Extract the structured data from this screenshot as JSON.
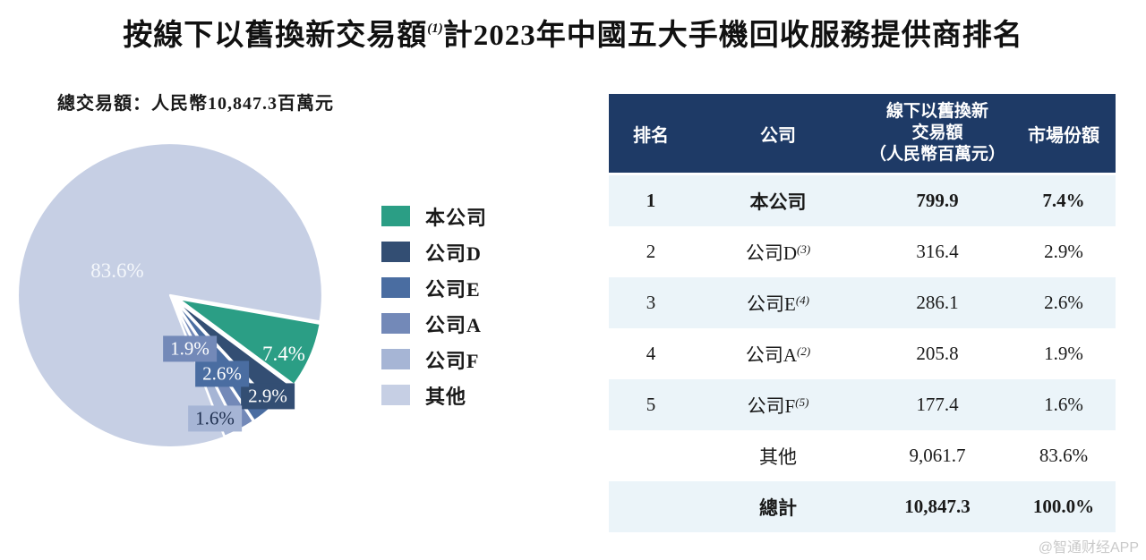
{
  "title": {
    "part1": "按線下以舊換新交易額",
    "superscript": "(1)",
    "part2": "計2023年中國五大手機回收服務提供商排名"
  },
  "subtitle": "總交易額：人民幣10,847.3百萬元",
  "chart_data": {
    "type": "pie",
    "title": "按線下以舊換新交易額(1)計2023年中國五大手機回收服務提供商排名",
    "total_label": "總交易額：人民幣10,847.3百萬元",
    "total_value_rmb_millions": 10847.3,
    "start_angle_deg": 10,
    "legend_position": "right",
    "slices": [
      {
        "name": "本公司",
        "value": 799.9,
        "share_pct": 7.4,
        "label": "7.4%",
        "color": "#2B9E85",
        "label_text_color": "#ffffff"
      },
      {
        "name": "公司D",
        "value": 316.4,
        "share_pct": 2.9,
        "label": "2.9%",
        "color": "#334E73",
        "label_text_color": "#ffffff"
      },
      {
        "name": "公司E",
        "value": 286.1,
        "share_pct": 2.6,
        "label": "2.6%",
        "color": "#4A6DA1",
        "label_text_color": "#ffffff"
      },
      {
        "name": "公司A",
        "value": 205.8,
        "share_pct": 1.9,
        "label": "1.9%",
        "color": "#7389B8",
        "label_text_color": "#ffffff"
      },
      {
        "name": "公司F",
        "value": 177.4,
        "share_pct": 1.6,
        "label": "1.6%",
        "color": "#A6B5D5",
        "label_text_color": "#1e2f4f"
      },
      {
        "name": "其他",
        "value": 9061.7,
        "share_pct": 83.6,
        "label": "83.6%",
        "color": "#C6CFE4",
        "label_text_color": "#f4f7fb"
      }
    ]
  },
  "table": {
    "header_bg": "#1E3A66",
    "row_alt_bg": "#EBF4F9",
    "header": {
      "rank": "排名",
      "company": "公司",
      "value_lines": [
        "線下以舊換新",
        "交易額",
        "（人民幣百萬元）"
      ],
      "share": "市場份額"
    },
    "rows": [
      {
        "rank": "1",
        "company": "本公司",
        "sup": "",
        "value": "799.9",
        "share": "7.4%",
        "bold": true
      },
      {
        "rank": "2",
        "company": "公司D",
        "sup": "(3)",
        "value": "316.4",
        "share": "2.9%",
        "bold": false
      },
      {
        "rank": "3",
        "company": "公司E",
        "sup": "(4)",
        "value": "286.1",
        "share": "2.6%",
        "bold": false
      },
      {
        "rank": "4",
        "company": "公司A",
        "sup": "(2)",
        "value": "205.8",
        "share": "1.9%",
        "bold": false
      },
      {
        "rank": "5",
        "company": "公司F",
        "sup": "(5)",
        "value": "177.4",
        "share": "1.6%",
        "bold": false
      },
      {
        "rank": "",
        "company": "其他",
        "sup": "",
        "value": "9,061.7",
        "share": "83.6%",
        "bold": false
      },
      {
        "rank": "",
        "company": "總計",
        "sup": "",
        "value": "10,847.3",
        "share": "100.0%",
        "bold": true
      }
    ]
  },
  "watermark": "@智通财经APP"
}
